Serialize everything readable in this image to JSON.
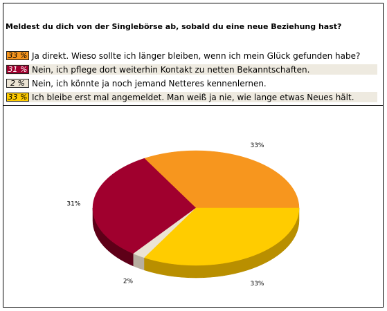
{
  "question": "Meldest du dich von der Singlebörse ab, sobald du eine neue Beziehung hast?",
  "answers": [
    {
      "percent_label": "33 %",
      "text": "Ja direkt. Wieso sollte ich länger bleiben, wenn ich mein Glück gefunden habe?",
      "color": "#f7961e"
    },
    {
      "percent_label": "31 %",
      "text": "Nein, ich pflege dort weiterhin Kontakt zu netten Bekanntschaften.",
      "color": "#a0002e"
    },
    {
      "percent_label": "2 %",
      "text": "Nein, ich könnte ja noch jemand Netteres kennenlernen.",
      "color": "#ebe3d3"
    },
    {
      "percent_label": "33 %",
      "text": "Ich bleibe erst mal angemeldet. Man weiß ja nie, wie lange etwas Neues hält.",
      "color": "#ffcc00"
    }
  ],
  "chart_data": {
    "type": "pie",
    "title": "",
    "categories": [
      "Ja direkt. Wieso sollte ich länger bleiben, wenn ich mein Glück gefunden habe?",
      "Nein, ich pflege dort weiterhin Kontakt zu netten Bekanntschaften.",
      "Nein, ich könnte ja noch jemand Netteres kennenlernen.",
      "Ich bleibe erst mal angemeldet. Man weiß ja nie, wie lange etwas Neues hält."
    ],
    "values": [
      33,
      31,
      2,
      33
    ],
    "data_labels": [
      "33%",
      "31%",
      "2%",
      "33%"
    ],
    "colors": [
      "#f7961e",
      "#a0002e",
      "#ebe3d3",
      "#ffcc00"
    ],
    "side_colors": [
      "#b06a12",
      "#5e0018",
      "#b7ae9f",
      "#b98f00"
    ],
    "three_d": true
  }
}
